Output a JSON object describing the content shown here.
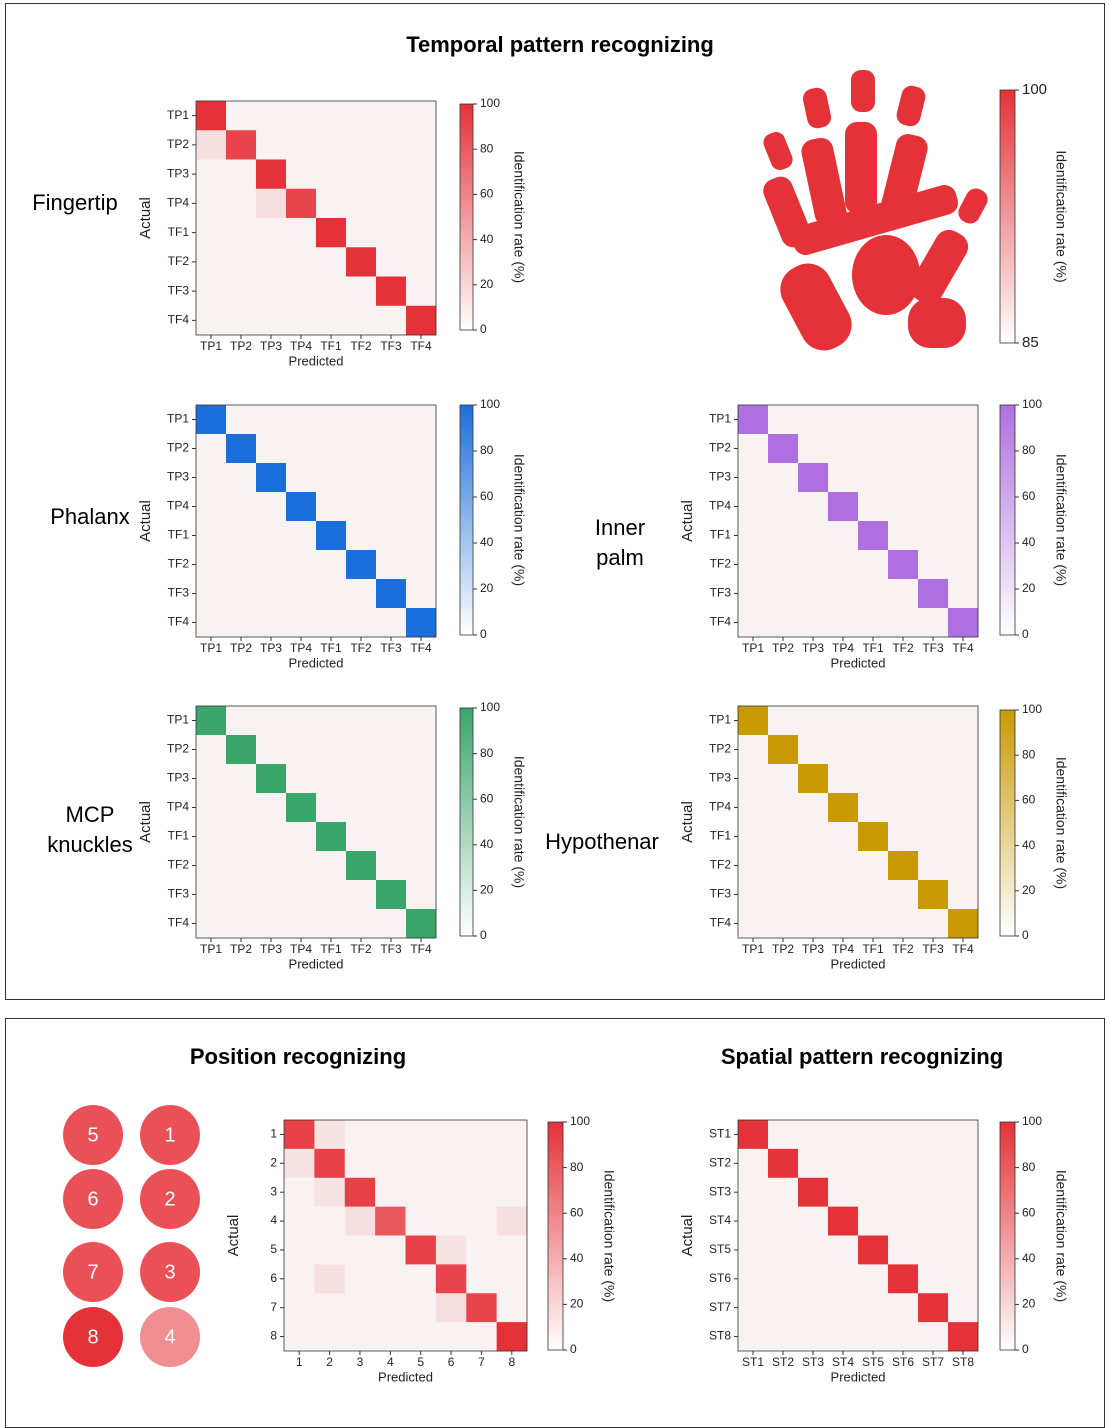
{
  "titles": [
    "Temporal pattern recognizing",
    "Position recognizing",
    "Spatial pattern recognizing"
  ],
  "chart_data": [
    {
      "type": "heatmap",
      "title": "Fingertip",
      "color": "#e53238",
      "low_color": "#f9f2f2",
      "x_categories": [
        "TP1",
        "TP2",
        "TP3",
        "TP4",
        "TF1",
        "TF2",
        "TF3",
        "TF4"
      ],
      "y_categories": [
        "TP1",
        "TP2",
        "TP3",
        "TP4",
        "TF1",
        "TF2",
        "TF3",
        "TF4"
      ],
      "xlabel": "Predicted",
      "ylabel": "Actual",
      "colorbar_label": "Identification rate (%)",
      "clim": [
        0,
        100
      ],
      "cticks": [
        0,
        20,
        40,
        60,
        80,
        100
      ],
      "values": [
        [
          100,
          0,
          0,
          0,
          0,
          0,
          0,
          0
        ],
        [
          10,
          90,
          0,
          0,
          0,
          0,
          0,
          0
        ],
        [
          0,
          0,
          100,
          0,
          0,
          0,
          0,
          0
        ],
        [
          0,
          0,
          10,
          90,
          0,
          0,
          0,
          0
        ],
        [
          0,
          0,
          0,
          0,
          100,
          0,
          0,
          0
        ],
        [
          0,
          0,
          0,
          0,
          0,
          100,
          0,
          0
        ],
        [
          0,
          0,
          0,
          0,
          0,
          0,
          100,
          0
        ],
        [
          0,
          0,
          0,
          0,
          0,
          0,
          0,
          100
        ]
      ]
    },
    {
      "type": "colorbar",
      "color": "#e53238",
      "colorbar_label": "Identification rate (%)",
      "clim": [
        85,
        100
      ],
      "cticks": [
        85,
        100
      ]
    },
    {
      "type": "heatmap",
      "title": "Phalanx",
      "color": "#1b6fdc",
      "low_color": "#f9f2f2",
      "x_categories": [
        "TP1",
        "TP2",
        "TP3",
        "TP4",
        "TF1",
        "TF2",
        "TF3",
        "TF4"
      ],
      "y_categories": [
        "TP1",
        "TP2",
        "TP3",
        "TP4",
        "TF1",
        "TF2",
        "TF3",
        "TF4"
      ],
      "xlabel": "Predicted",
      "ylabel": "Actual",
      "colorbar_label": "Identification rate (%)",
      "clim": [
        0,
        100
      ],
      "cticks": [
        0,
        20,
        40,
        60,
        80,
        100
      ],
      "values": [
        [
          100,
          0,
          0,
          0,
          0,
          0,
          0,
          0
        ],
        [
          0,
          100,
          0,
          0,
          0,
          0,
          0,
          0
        ],
        [
          0,
          0,
          100,
          0,
          0,
          0,
          0,
          0
        ],
        [
          0,
          0,
          0,
          100,
          0,
          0,
          0,
          0
        ],
        [
          0,
          0,
          0,
          0,
          100,
          0,
          0,
          0
        ],
        [
          0,
          0,
          0,
          0,
          0,
          100,
          0,
          0
        ],
        [
          0,
          0,
          0,
          0,
          0,
          0,
          100,
          0
        ],
        [
          0,
          0,
          0,
          0,
          0,
          0,
          0,
          100
        ]
      ]
    },
    {
      "type": "heatmap",
      "title": "Inner palm",
      "color": "#b06fe0",
      "low_color": "#f9f2f2",
      "x_categories": [
        "TP1",
        "TP2",
        "TP3",
        "TP4",
        "TF1",
        "TF2",
        "TF3",
        "TF4"
      ],
      "y_categories": [
        "TP1",
        "TP2",
        "TP3",
        "TP4",
        "TF1",
        "TF2",
        "TF3",
        "TF4"
      ],
      "xlabel": "Predicted",
      "ylabel": "Actual",
      "colorbar_label": "Identification rate (%)",
      "clim": [
        0,
        100
      ],
      "cticks": [
        0,
        20,
        40,
        60,
        80,
        100
      ],
      "values": [
        [
          100,
          0,
          0,
          0,
          0,
          0,
          0,
          0
        ],
        [
          0,
          100,
          0,
          0,
          0,
          0,
          0,
          0
        ],
        [
          0,
          0,
          100,
          0,
          0,
          0,
          0,
          0
        ],
        [
          0,
          0,
          0,
          100,
          0,
          0,
          0,
          0
        ],
        [
          0,
          0,
          0,
          0,
          100,
          0,
          0,
          0
        ],
        [
          0,
          0,
          0,
          0,
          0,
          100,
          0,
          0
        ],
        [
          0,
          0,
          0,
          0,
          0,
          0,
          100,
          0
        ],
        [
          0,
          0,
          0,
          0,
          0,
          0,
          0,
          100
        ]
      ]
    },
    {
      "type": "heatmap",
      "title": "MCP knuckles",
      "color": "#3aa66a",
      "low_color": "#f9f2f2",
      "x_categories": [
        "TP1",
        "TP2",
        "TP3",
        "TP4",
        "TF1",
        "TF2",
        "TF3",
        "TF4"
      ],
      "y_categories": [
        "TP1",
        "TP2",
        "TP3",
        "TP4",
        "TF1",
        "TF2",
        "TF3",
        "TF4"
      ],
      "xlabel": "Predicted",
      "ylabel": "Actual",
      "colorbar_label": "Identification rate (%)",
      "clim": [
        0,
        100
      ],
      "cticks": [
        0,
        20,
        40,
        60,
        80,
        100
      ],
      "values": [
        [
          100,
          0,
          0,
          0,
          0,
          0,
          0,
          0
        ],
        [
          0,
          100,
          0,
          0,
          0,
          0,
          0,
          0
        ],
        [
          0,
          0,
          100,
          0,
          0,
          0,
          0,
          0
        ],
        [
          0,
          0,
          0,
          100,
          0,
          0,
          0,
          0
        ],
        [
          0,
          0,
          0,
          0,
          100,
          0,
          0,
          0
        ],
        [
          0,
          0,
          0,
          0,
          0,
          100,
          0,
          0
        ],
        [
          0,
          0,
          0,
          0,
          0,
          0,
          100,
          0
        ],
        [
          0,
          0,
          0,
          0,
          0,
          0,
          0,
          100
        ]
      ]
    },
    {
      "type": "heatmap",
      "title": "Hypothenar",
      "color": "#c99a04",
      "low_color": "#f9f2f2",
      "x_categories": [
        "TP1",
        "TP2",
        "TP3",
        "TP4",
        "TF1",
        "TF2",
        "TF3",
        "TF4"
      ],
      "y_categories": [
        "TP1",
        "TP2",
        "TP3",
        "TP4",
        "TF1",
        "TF2",
        "TF3",
        "TF4"
      ],
      "xlabel": "Predicted",
      "ylabel": "Actual",
      "colorbar_label": "Identification rate (%)",
      "clim": [
        0,
        100
      ],
      "cticks": [
        0,
        20,
        40,
        60,
        80,
        100
      ],
      "values": [
        [
          100,
          0,
          0,
          0,
          0,
          0,
          0,
          0
        ],
        [
          0,
          100,
          0,
          0,
          0,
          0,
          0,
          0
        ],
        [
          0,
          0,
          100,
          0,
          0,
          0,
          0,
          0
        ],
        [
          0,
          0,
          0,
          100,
          0,
          0,
          0,
          0
        ],
        [
          0,
          0,
          0,
          0,
          100,
          0,
          0,
          0
        ],
        [
          0,
          0,
          0,
          0,
          0,
          100,
          0,
          0
        ],
        [
          0,
          0,
          0,
          0,
          0,
          0,
          100,
          0
        ],
        [
          0,
          0,
          0,
          0,
          0,
          0,
          0,
          100
        ]
      ]
    },
    {
      "type": "position-map",
      "color": "#e53238",
      "clim": [
        85,
        100
      ],
      "categories": [
        "5",
        "1",
        "6",
        "2",
        "7",
        "3",
        "8",
        "4"
      ],
      "values": [
        97,
        97,
        97,
        97,
        97,
        97,
        100,
        91
      ]
    },
    {
      "type": "heatmap",
      "color": "#e53238",
      "low_color": "#f9f2f2",
      "x_categories": [
        "1",
        "2",
        "3",
        "4",
        "5",
        "6",
        "7",
        "8"
      ],
      "y_categories": [
        "1",
        "2",
        "3",
        "4",
        "5",
        "6",
        "7",
        "8"
      ],
      "xlabel": "Predicted",
      "ylabel": "Actual",
      "colorbar_label": "Identification rate (%)",
      "clim": [
        0,
        100
      ],
      "cticks": [
        0,
        20,
        40,
        60,
        80,
        100
      ],
      "values": [
        [
          92,
          8,
          0,
          0,
          0,
          0,
          0,
          0
        ],
        [
          8,
          92,
          0,
          0,
          0,
          0,
          0,
          0
        ],
        [
          0,
          8,
          92,
          0,
          0,
          0,
          0,
          0
        ],
        [
          0,
          0,
          10,
          80,
          0,
          0,
          0,
          10
        ],
        [
          0,
          0,
          0,
          0,
          92,
          8,
          0,
          0
        ],
        [
          0,
          10,
          0,
          0,
          0,
          90,
          0,
          0
        ],
        [
          0,
          0,
          0,
          0,
          0,
          10,
          90,
          0
        ],
        [
          0,
          0,
          0,
          0,
          0,
          0,
          0,
          100
        ]
      ]
    },
    {
      "type": "heatmap",
      "color": "#e53238",
      "low_color": "#f9f2f2",
      "x_categories": [
        "ST1",
        "ST2",
        "ST3",
        "ST4",
        "ST5",
        "ST6",
        "ST7",
        "ST8"
      ],
      "y_categories": [
        "ST1",
        "ST2",
        "ST3",
        "ST4",
        "ST5",
        "ST6",
        "ST7",
        "ST8"
      ],
      "xlabel": "Predicted",
      "ylabel": "Actual",
      "colorbar_label": "Identification rate (%)",
      "clim": [
        0,
        100
      ],
      "cticks": [
        0,
        20,
        40,
        60,
        80,
        100
      ],
      "values": [
        [
          100,
          0,
          0,
          0,
          0,
          0,
          0,
          0
        ],
        [
          0,
          100,
          0,
          0,
          0,
          0,
          0,
          0
        ],
        [
          0,
          0,
          100,
          0,
          0,
          0,
          0,
          0
        ],
        [
          0,
          0,
          0,
          100,
          0,
          0,
          0,
          0
        ],
        [
          0,
          0,
          0,
          0,
          100,
          0,
          0,
          0
        ],
        [
          0,
          0,
          0,
          0,
          0,
          100,
          0,
          0
        ],
        [
          0,
          0,
          0,
          0,
          0,
          0,
          100,
          0
        ],
        [
          0,
          0,
          0,
          0,
          0,
          0,
          0,
          100
        ]
      ]
    }
  ]
}
